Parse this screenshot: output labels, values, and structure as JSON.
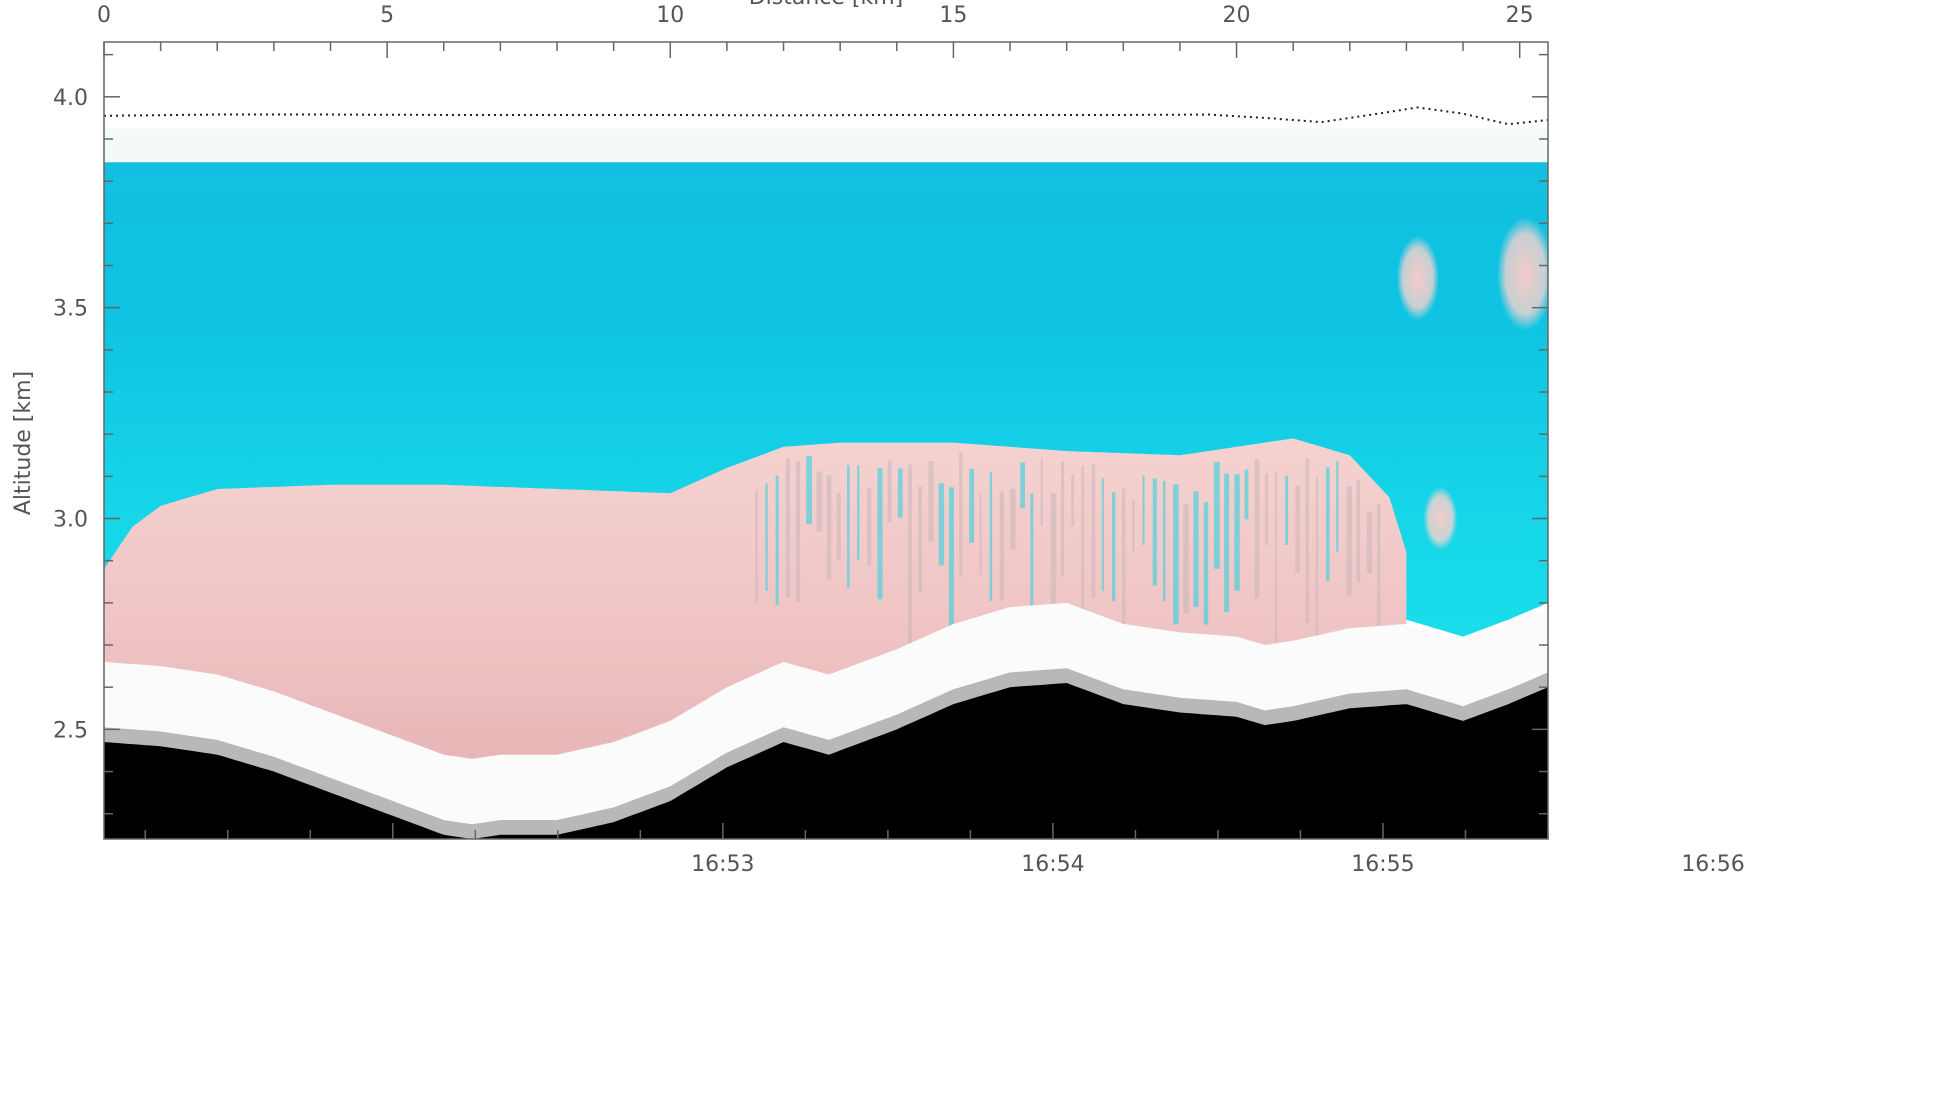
{
  "chart_data": {
    "type": "heatmap",
    "title": "",
    "top_axis": {
      "label": "Distance [km]",
      "range": [
        0,
        25.5
      ],
      "major_ticks": [
        0,
        5,
        10,
        15,
        20,
        25
      ],
      "tick_labels": [
        "0",
        "5",
        "10",
        "15",
        "20",
        "25"
      ],
      "minor_step": 1
    },
    "bottom_axis": {
      "label": "",
      "tick_labels": [
        "16:53",
        "16:54",
        "16:55",
        "16:56"
      ],
      "major_ticks_min": [
        1.0,
        2.0,
        3.0,
        4.0
      ],
      "range_min": [
        -0.875,
        3.5
      ],
      "minor_step_min": 0.25
    },
    "y_axis": {
      "label": "Altitude [km]",
      "range": [
        2.24,
        4.13
      ],
      "major_ticks": [
        2.5,
        3.0,
        3.5,
        4.0
      ],
      "tick_labels": [
        "2.5",
        "3.0",
        "3.5",
        "4.0"
      ],
      "minor_step": 0.1
    },
    "flight_altitude_km": {
      "distance_km": [
        0,
        2,
        4,
        6,
        8,
        10,
        12,
        14,
        16,
        18,
        19.5,
        20.5,
        21.5,
        22.5,
        23.2,
        24,
        24.8,
        25.5
      ],
      "altitude_km": [
        3.955,
        3.958,
        3.958,
        3.957,
        3.957,
        3.957,
        3.956,
        3.957,
        3.957,
        3.957,
        3.958,
        3.95,
        3.94,
        3.96,
        3.975,
        3.96,
        3.935,
        3.945
      ]
    },
    "signal_top_km": 3.845,
    "ground_km": {
      "distance_km": [
        0,
        1,
        2,
        3,
        4,
        5,
        6,
        6.5,
        7,
        8,
        9,
        10,
        11,
        12,
        12.8,
        13.2,
        14,
        15,
        16,
        17,
        18,
        19,
        20,
        20.5,
        21,
        22,
        23,
        24,
        24.8,
        25.5
      ],
      "altitude_km": [
        2.47,
        2.46,
        2.44,
        2.4,
        2.35,
        2.3,
        2.25,
        2.24,
        2.25,
        2.25,
        2.28,
        2.33,
        2.41,
        2.47,
        2.44,
        2.46,
        2.5,
        2.56,
        2.6,
        2.61,
        2.56,
        2.54,
        2.53,
        2.51,
        2.52,
        2.55,
        2.56,
        2.52,
        2.56,
        2.6
      ]
    },
    "aerosol_layer_top_km": {
      "distance_km": [
        0,
        0.5,
        1,
        2,
        4,
        6,
        8,
        10,
        11,
        12,
        13,
        15,
        17,
        19,
        20,
        21,
        22,
        22.7,
        23.0
      ],
      "altitude_km": [
        2.88,
        2.98,
        3.03,
        3.07,
        3.08,
        3.08,
        3.07,
        3.06,
        3.12,
        3.17,
        3.18,
        3.18,
        3.16,
        3.15,
        3.17,
        3.19,
        3.15,
        3.05,
        2.92
      ]
    },
    "colors": {
      "clear_air": "#17d4e6",
      "aerosol": "#f3c9c7",
      "aerosol_dense": "#d9a4a6",
      "ground": "#000000",
      "near_ground": "#ffffff",
      "above_signal": "#ffffff"
    },
    "grid": false
  }
}
